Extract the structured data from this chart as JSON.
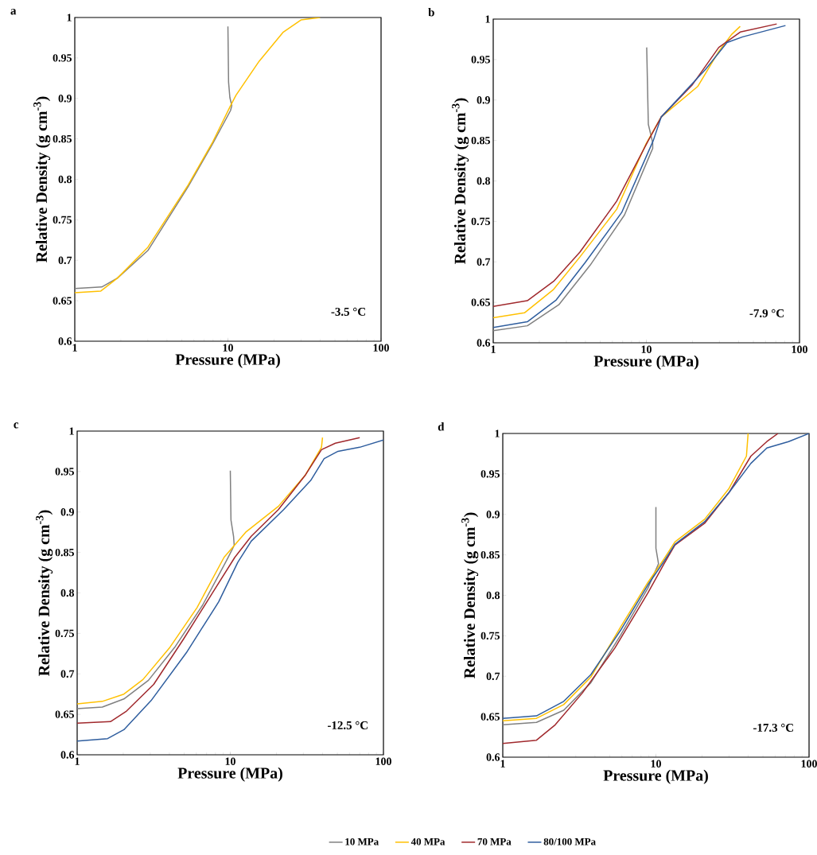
{
  "chart_data": [
    {
      "type": "line",
      "title": "a",
      "xlabel": "Pressure (MPa)",
      "ylabel": "Relative Density (g cm$^{-3}$)",
      "log": "x",
      "xlim": [
        1,
        100
      ],
      "ylim": [
        0.6,
        1
      ],
      "xticks": [
        1,
        10,
        100
      ],
      "yticks": [
        0.6,
        0.65,
        0.7,
        0.75,
        0.8,
        0.85,
        0.9,
        0.95,
        1
      ],
      "annotations": [
        "-3.5 °C"
      ],
      "series": [
        {
          "color": "#808080",
          "x": [
            1,
            1.5,
            1.9,
            3.0,
            5.5,
            7.9,
            10.4,
            10.6,
            10.3,
            10.1,
            10.0
          ],
          "values": [
            0.665,
            0.667,
            0.678,
            0.712,
            0.791,
            0.843,
            0.885,
            0.891,
            0.901,
            0.92,
            0.989
          ]
        },
        {
          "color": "#ffc000",
          "x": [
            1,
            1.48,
            1.9,
            3.0,
            5.5,
            7.9,
            10.4,
            11.3,
            16,
            23,
            30,
            40
          ],
          "values": [
            0.66,
            0.662,
            0.678,
            0.716,
            0.793,
            0.845,
            0.891,
            0.904,
            0.946,
            0.982,
            0.997,
            1.0
          ]
        }
      ]
    },
    {
      "type": "line",
      "title": "b",
      "xlabel": "Pressure (MPa)",
      "ylabel": "Relative Density (g cm$^{-3}$)",
      "log": "x",
      "xlim": [
        1,
        100
      ],
      "ylim": [
        0.6,
        1
      ],
      "xticks": [
        1,
        10,
        100
      ],
      "yticks": [
        0.6,
        0.65,
        0.7,
        0.75,
        0.8,
        0.85,
        0.9,
        0.95,
        1
      ],
      "annotations": [
        "-7.9 °C"
      ],
      "series": [
        {
          "color": "#808080",
          "x": [
            1,
            1.67,
            2.68,
            4.3,
            7.2,
            10.7,
            11.0,
            11.0,
            10.3,
            10.05
          ],
          "values": [
            0.615,
            0.621,
            0.647,
            0.696,
            0.758,
            0.835,
            0.84,
            0.847,
            0.87,
            0.965
          ]
        },
        {
          "color": "#ffc000",
          "x": [
            1,
            1.6,
            2.48,
            3.68,
            6.4,
            9.9,
            12.5,
            21.7,
            29.7,
            36,
            41
          ],
          "values": [
            0.631,
            0.637,
            0.666,
            0.706,
            0.765,
            0.845,
            0.879,
            0.917,
            0.96,
            0.981,
            0.991
          ]
        },
        {
          "color": "#a0282c",
          "x": [
            1,
            1.67,
            2.48,
            3.68,
            6.4,
            10.3,
            12.5,
            20,
            29.7,
            41,
            71
          ],
          "values": [
            0.645,
            0.652,
            0.676,
            0.712,
            0.775,
            0.85,
            0.879,
            0.919,
            0.965,
            0.984,
            0.994
          ]
        },
        {
          "color": "#2e5d9e",
          "x": [
            1,
            1.67,
            2.58,
            3.98,
            6.9,
            11.1,
            12.5,
            24.4,
            33.6,
            42.5,
            81
          ],
          "values": [
            0.619,
            0.626,
            0.653,
            0.699,
            0.761,
            0.85,
            0.879,
            0.938,
            0.971,
            0.978,
            0.992
          ]
        }
      ]
    },
    {
      "type": "line",
      "title": "c",
      "xlabel": "Pressure (MPa)",
      "ylabel": "Relative Density (g cm$^{-3}$)",
      "log": "x",
      "xlim": [
        1,
        100
      ],
      "ylim": [
        0.6,
        1
      ],
      "xticks": [
        1,
        10,
        100
      ],
      "yticks": [
        0.6,
        0.65,
        0.7,
        0.75,
        0.8,
        0.85,
        0.9,
        0.95,
        1
      ],
      "annotations": [
        "-12.5 °C"
      ],
      "series": [
        {
          "color": "#808080",
          "x": [
            1,
            1.46,
            2.02,
            2.92,
            4.38,
            6.6,
            9.5,
            10.3,
            10.6,
            10.5,
            10.1,
            10.0
          ],
          "values": [
            0.657,
            0.659,
            0.669,
            0.692,
            0.734,
            0.785,
            0.841,
            0.854,
            0.859,
            0.87,
            0.89,
            0.951
          ]
        },
        {
          "color": "#ffc000",
          "x": [
            1,
            1.46,
            2.02,
            2.69,
            4.04,
            6.07,
            9.1,
            12.6,
            20.6,
            31,
            39.4,
            40
          ],
          "values": [
            0.663,
            0.666,
            0.675,
            0.693,
            0.733,
            0.782,
            0.844,
            0.875,
            0.907,
            0.946,
            0.98,
            0.992
          ]
        },
        {
          "color": "#a0282c",
          "x": [
            1,
            1.65,
            2.1,
            3.16,
            4.95,
            7.77,
            10.7,
            13.7,
            20.6,
            31,
            39.4,
            48.5,
            70
          ],
          "values": [
            0.639,
            0.641,
            0.654,
            0.687,
            0.743,
            0.802,
            0.844,
            0.87,
            0.903,
            0.946,
            0.977,
            0.985,
            0.992
          ]
        },
        {
          "color": "#2e5d9e",
          "x": [
            1,
            1.58,
            2.02,
            3.04,
            5.16,
            8.4,
            11.2,
            13.7,
            22.3,
            33.5,
            41,
            50.5,
            70,
            100
          ],
          "values": [
            0.617,
            0.62,
            0.631,
            0.667,
            0.726,
            0.789,
            0.838,
            0.864,
            0.903,
            0.939,
            0.966,
            0.975,
            0.98,
            0.989
          ]
        }
      ]
    },
    {
      "type": "line",
      "title": "d",
      "xlabel": "Pressure (MPa)",
      "ylabel": "Relative Density (g cm$^{-3}$)",
      "log": "x",
      "xlim": [
        1,
        100
      ],
      "ylim": [
        0.6,
        1
      ],
      "xticks": [
        1,
        10,
        100
      ],
      "yticks": [
        0.6,
        0.65,
        0.7,
        0.75,
        0.8,
        0.85,
        0.9,
        0.95,
        1
      ],
      "annotations": [
        "-17.3 °C"
      ],
      "legend": "bottom",
      "series": [
        {
          "name": "10 MPa",
          "color": "#808080",
          "x": [
            1,
            1.66,
            2.5,
            3.76,
            5.89,
            8.87,
            10.4,
            10.0,
            10.0
          ],
          "values": [
            0.64,
            0.643,
            0.658,
            0.692,
            0.751,
            0.809,
            0.839,
            0.858,
            0.909
          ]
        },
        {
          "name": "40 MPa",
          "color": "#ffc000",
          "x": [
            1,
            1.66,
            2.5,
            3.76,
            5.89,
            8.87,
            11.3,
            13.3,
            20.8,
            30,
            39,
            40
          ],
          "values": [
            0.645,
            0.648,
            0.665,
            0.699,
            0.761,
            0.816,
            0.845,
            0.866,
            0.894,
            0.932,
            0.972,
            1.0
          ]
        },
        {
          "name": "70 MPa",
          "color": "#a0282c",
          "x": [
            1,
            1.66,
            2.2,
            3.3,
            5.4,
            8.87,
            11.3,
            13.3,
            20.8,
            30,
            41.7,
            53,
            62.7
          ],
          "values": [
            0.617,
            0.621,
            0.64,
            0.679,
            0.735,
            0.803,
            0.839,
            0.862,
            0.889,
            0.927,
            0.972,
            0.99,
            1.0
          ]
        },
        {
          "name": "80/100 MPa",
          "color": "#2e5d9e",
          "x": [
            1,
            1.66,
            2.5,
            3.76,
            5.89,
            8.87,
            11.3,
            13.3,
            20.8,
            30,
            41.7,
            53,
            73.5,
            100
          ],
          "values": [
            0.648,
            0.651,
            0.669,
            0.702,
            0.757,
            0.813,
            0.842,
            0.863,
            0.891,
            0.927,
            0.963,
            0.982,
            0.99,
            1.0
          ]
        }
      ]
    }
  ]
}
